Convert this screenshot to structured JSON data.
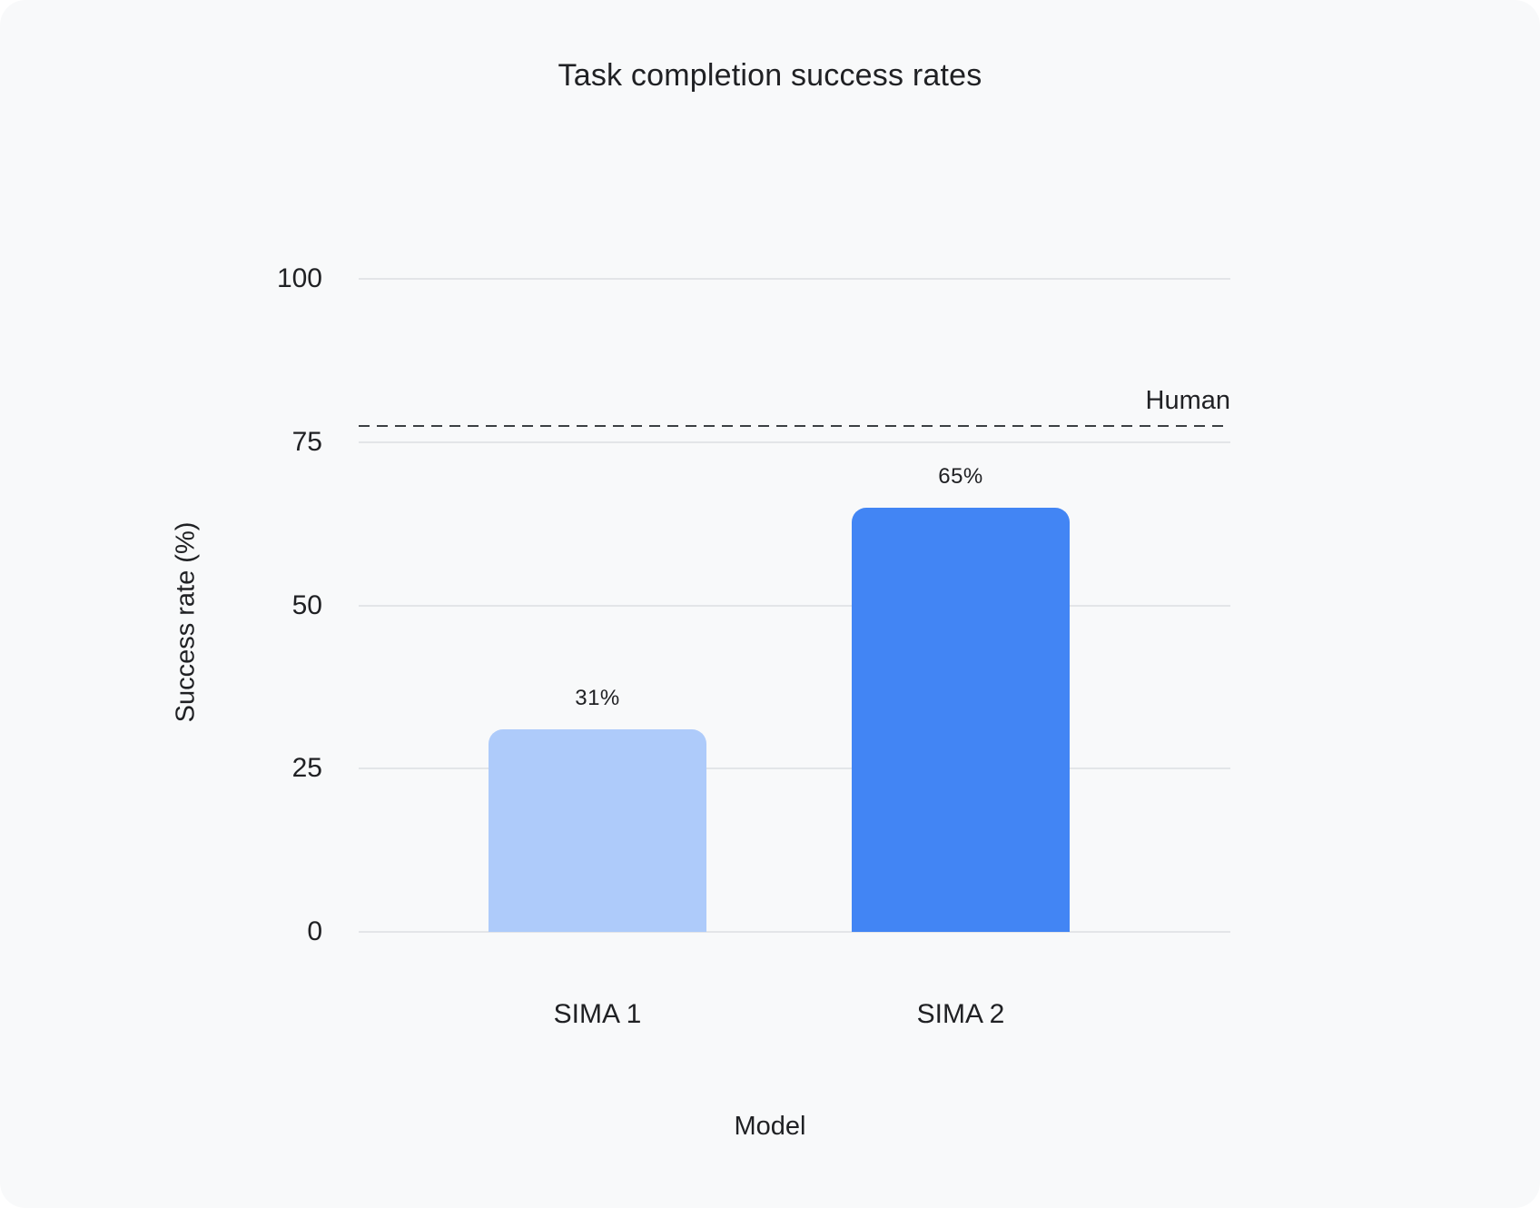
{
  "page": {
    "background": "#ffffff",
    "card_background": "#f8f9fa"
  },
  "chart_data": {
    "type": "bar",
    "title": "Task completion success rates",
    "xlabel": "Model",
    "ylabel": "Success rate (%)",
    "categories": [
      "SIMA 1",
      "SIMA 2"
    ],
    "values": [
      31,
      65
    ],
    "value_labels": [
      "31%",
      "65%"
    ],
    "bar_colors": [
      "#aecbfa",
      "#4285f4"
    ],
    "ylim": [
      0,
      100
    ],
    "yticks": [
      0,
      25,
      50,
      75,
      100
    ],
    "grid": "horizontal-only",
    "legend": "none",
    "reference_line": {
      "label": "Human",
      "value": 77.5,
      "style": "dashed",
      "color": "#3c4043"
    },
    "text_color": "#202124",
    "gridline_color": "#e3e5e8"
  }
}
